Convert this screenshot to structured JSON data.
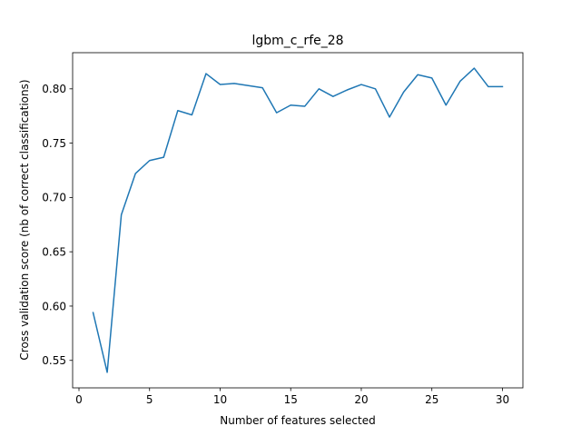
{
  "chart_data": {
    "type": "line",
    "title": "lgbm_c_rfe_28",
    "xlabel": "Number of features selected",
    "ylabel": "Cross validation score (nb of correct classifications)",
    "xlim": [
      -0.45,
      31.45
    ],
    "ylim": [
      0.5247,
      0.8333
    ],
    "xticks": [
      0,
      5,
      10,
      15,
      20,
      25,
      30
    ],
    "xtick_labels": [
      "0",
      "5",
      "10",
      "15",
      "20",
      "25",
      "30"
    ],
    "yticks": [
      0.55,
      0.6,
      0.65,
      0.7,
      0.75,
      0.8
    ],
    "ytick_labels": [
      "0.55",
      "0.60",
      "0.65",
      "0.70",
      "0.75",
      "0.80"
    ],
    "grid": false,
    "legend": "none",
    "series": [
      {
        "color": "#1f77b4",
        "x": [
          1,
          2,
          3,
          4,
          5,
          6,
          7,
          8,
          9,
          10,
          11,
          12,
          13,
          14,
          15,
          16,
          17,
          18,
          19,
          20,
          21,
          22,
          23,
          24,
          25,
          26,
          27,
          28,
          29,
          30
        ],
        "y": [
          0.594,
          0.539,
          0.684,
          0.722,
          0.734,
          0.737,
          0.78,
          0.776,
          0.814,
          0.804,
          0.805,
          0.803,
          0.801,
          0.778,
          0.785,
          0.784,
          0.8,
          0.793,
          0.799,
          0.804,
          0.8,
          0.774,
          0.797,
          0.813,
          0.81,
          0.785,
          0.807,
          0.819,
          0.802,
          0.802
        ]
      }
    ]
  }
}
